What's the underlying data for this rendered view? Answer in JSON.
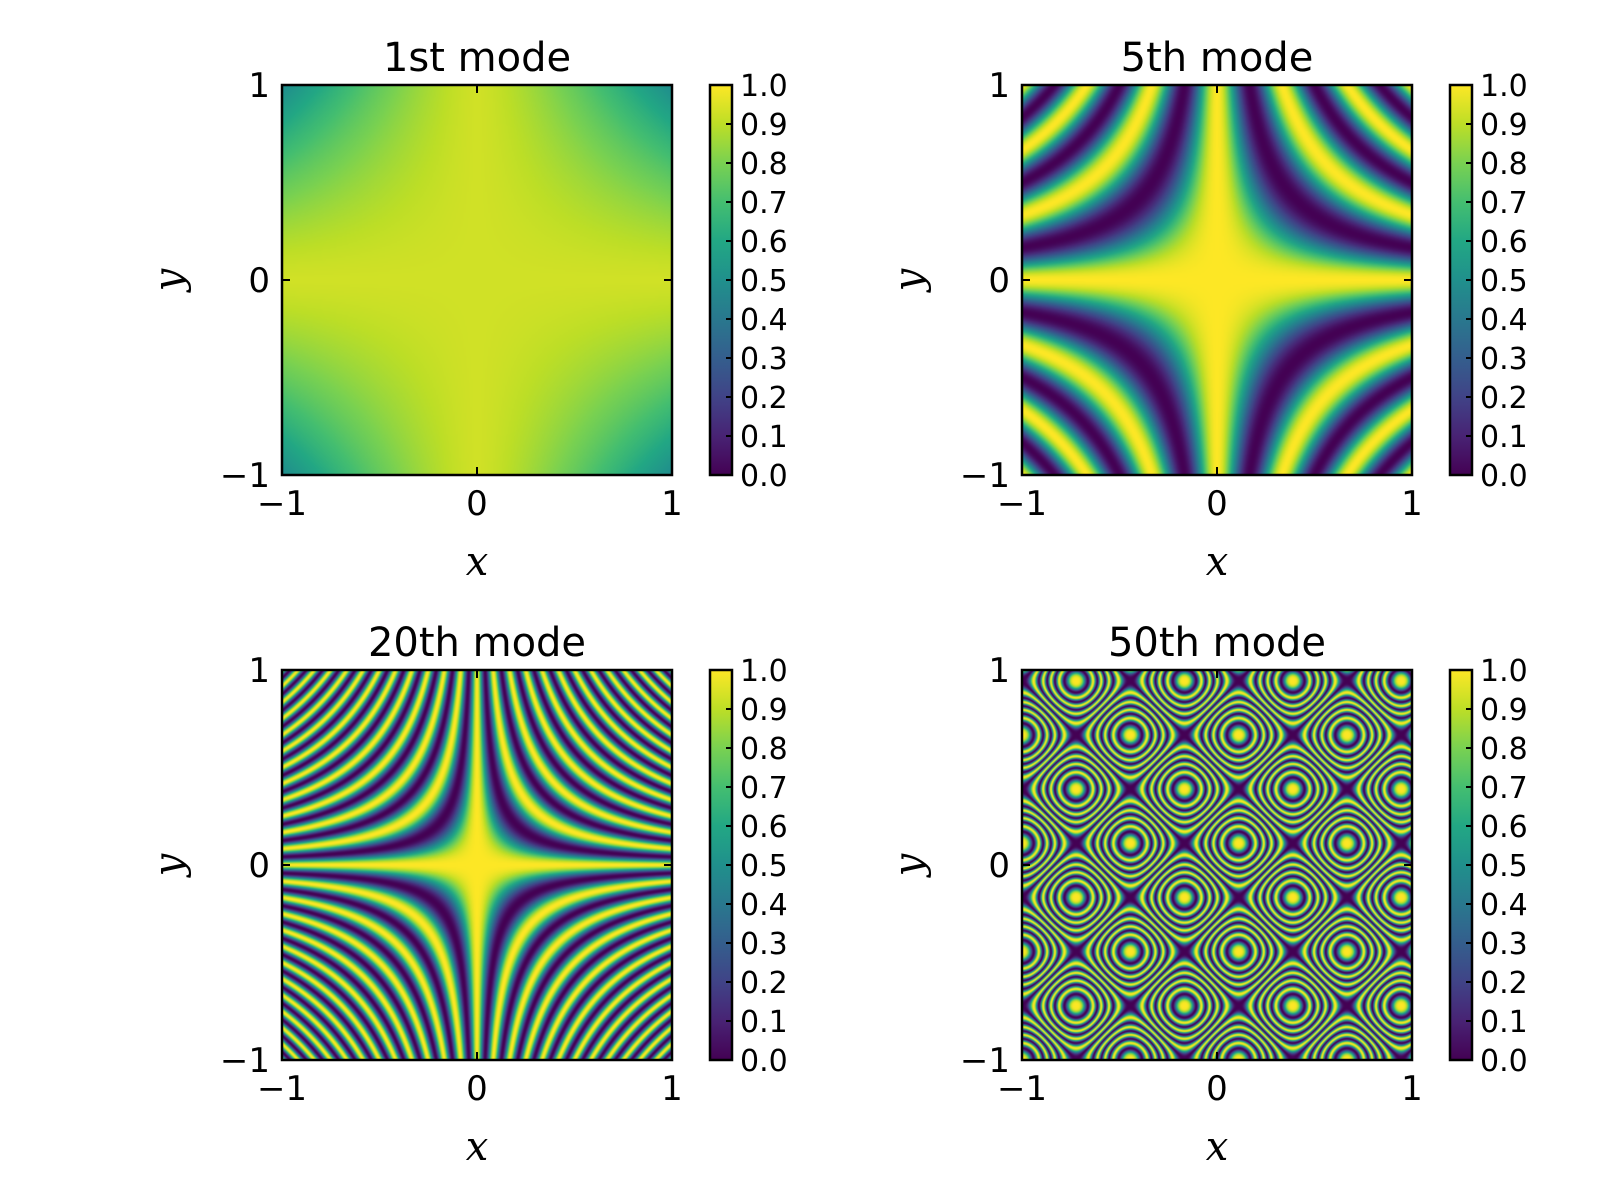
{
  "chart_data": [
    {
      "type": "heatmap",
      "title": "1st mode",
      "mode": 1,
      "xlabel": "x",
      "ylabel": "y",
      "xlim": [
        -1,
        1
      ],
      "ylim": [
        -1,
        1
      ],
      "xticks": [
        "−1",
        "0",
        "1"
      ],
      "yticks": [
        "−1",
        "0",
        "1"
      ],
      "colormap": "viridis",
      "colorbar": {
        "range": [
          0.0,
          1.0
        ],
        "ticks": [
          "0.0",
          "0.1",
          "0.2",
          "0.3",
          "0.4",
          "0.5",
          "0.6",
          "0.7",
          "0.8",
          "0.9",
          "1.0"
        ]
      },
      "grid": false
    },
    {
      "type": "heatmap",
      "title": "5th mode",
      "mode": 5,
      "xlabel": "x",
      "ylabel": "y",
      "xlim": [
        -1,
        1
      ],
      "ylim": [
        -1,
        1
      ],
      "xticks": [
        "−1",
        "0",
        "1"
      ],
      "yticks": [
        "−1",
        "0",
        "1"
      ],
      "colormap": "viridis",
      "colorbar": {
        "range": [
          0.0,
          1.0
        ],
        "ticks": [
          "0.0",
          "0.1",
          "0.2",
          "0.3",
          "0.4",
          "0.5",
          "0.6",
          "0.7",
          "0.8",
          "0.9",
          "1.0"
        ]
      },
      "grid": false
    },
    {
      "type": "heatmap",
      "title": "20th mode",
      "mode": 20,
      "xlabel": "x",
      "ylabel": "y",
      "xlim": [
        -1,
        1
      ],
      "ylim": [
        -1,
        1
      ],
      "xticks": [
        "−1",
        "0",
        "1"
      ],
      "yticks": [
        "−1",
        "0",
        "1"
      ],
      "colormap": "viridis",
      "colorbar": {
        "range": [
          0.0,
          1.0
        ],
        "ticks": [
          "0.0",
          "0.1",
          "0.2",
          "0.3",
          "0.4",
          "0.5",
          "0.6",
          "0.7",
          "0.8",
          "0.9",
          "1.0"
        ]
      },
      "grid": false
    },
    {
      "type": "heatmap",
      "title": "50th mode",
      "mode": 50,
      "xlabel": "x",
      "ylabel": "y",
      "xlim": [
        -1,
        1
      ],
      "ylim": [
        -1,
        1
      ],
      "xticks": [
        "−1",
        "0",
        "1"
      ],
      "yticks": [
        "−1",
        "0",
        "1"
      ],
      "colormap": "viridis",
      "colorbar": {
        "range": [
          0.0,
          1.0
        ],
        "ticks": [
          "0.0",
          "0.1",
          "0.2",
          "0.3",
          "0.4",
          "0.5",
          "0.6",
          "0.7",
          "0.8",
          "0.9",
          "1.0"
        ]
      },
      "grid": false
    }
  ]
}
